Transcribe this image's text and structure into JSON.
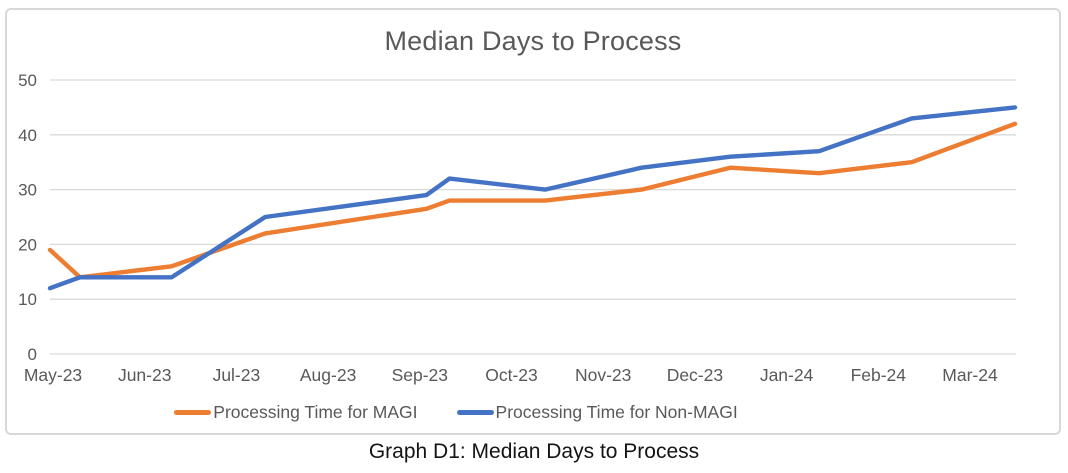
{
  "chart_data": {
    "type": "line",
    "title": "Median Days to Process",
    "caption": "Graph D1: Median Days to Process",
    "xlabel": "",
    "ylabel": "",
    "ylim": [
      0,
      50
    ],
    "y_ticks": [
      0,
      10,
      20,
      30,
      40,
      50
    ],
    "x_tick_labels": [
      "May-23",
      "Jun-23",
      "Jul-23",
      "Aug-23",
      "Sep-23",
      "Oct-23",
      "Nov-23",
      "Dec-23",
      "Jan-24",
      "Feb-24",
      "Mar-24"
    ],
    "grid": "horizontal",
    "legend_position": "bottom",
    "colors": {
      "gridline": "#d9d9d9",
      "axis_text": "#595959",
      "title_text": "#595959",
      "caption_text": "#141414",
      "magi": "#ED7D31",
      "non_magi": "#4472C4"
    },
    "series": [
      {
        "name": "Processing Time for MAGI",
        "color": "#ED7D31",
        "points": [
          {
            "x": 0.0,
            "v": 19
          },
          {
            "x": 0.031,
            "v": 14
          },
          {
            "x": 0.126,
            "v": 16
          },
          {
            "x": 0.223,
            "v": 22
          },
          {
            "x": 0.39,
            "v": 26.5
          },
          {
            "x": 0.414,
            "v": 28
          },
          {
            "x": 0.513,
            "v": 28
          },
          {
            "x": 0.613,
            "v": 30
          },
          {
            "x": 0.705,
            "v": 34
          },
          {
            "x": 0.797,
            "v": 33
          },
          {
            "x": 0.893,
            "v": 35
          },
          {
            "x": 1.0,
            "v": 42
          }
        ]
      },
      {
        "name": "Processing Time for Non-MAGI",
        "color": "#4472C4",
        "points": [
          {
            "x": 0.0,
            "v": 12
          },
          {
            "x": 0.031,
            "v": 14
          },
          {
            "x": 0.126,
            "v": 14
          },
          {
            "x": 0.223,
            "v": 25
          },
          {
            "x": 0.39,
            "v": 29
          },
          {
            "x": 0.414,
            "v": 32
          },
          {
            "x": 0.513,
            "v": 30
          },
          {
            "x": 0.613,
            "v": 34
          },
          {
            "x": 0.705,
            "v": 36
          },
          {
            "x": 0.797,
            "v": 37
          },
          {
            "x": 0.893,
            "v": 43
          },
          {
            "x": 1.0,
            "v": 45
          }
        ]
      }
    ]
  }
}
